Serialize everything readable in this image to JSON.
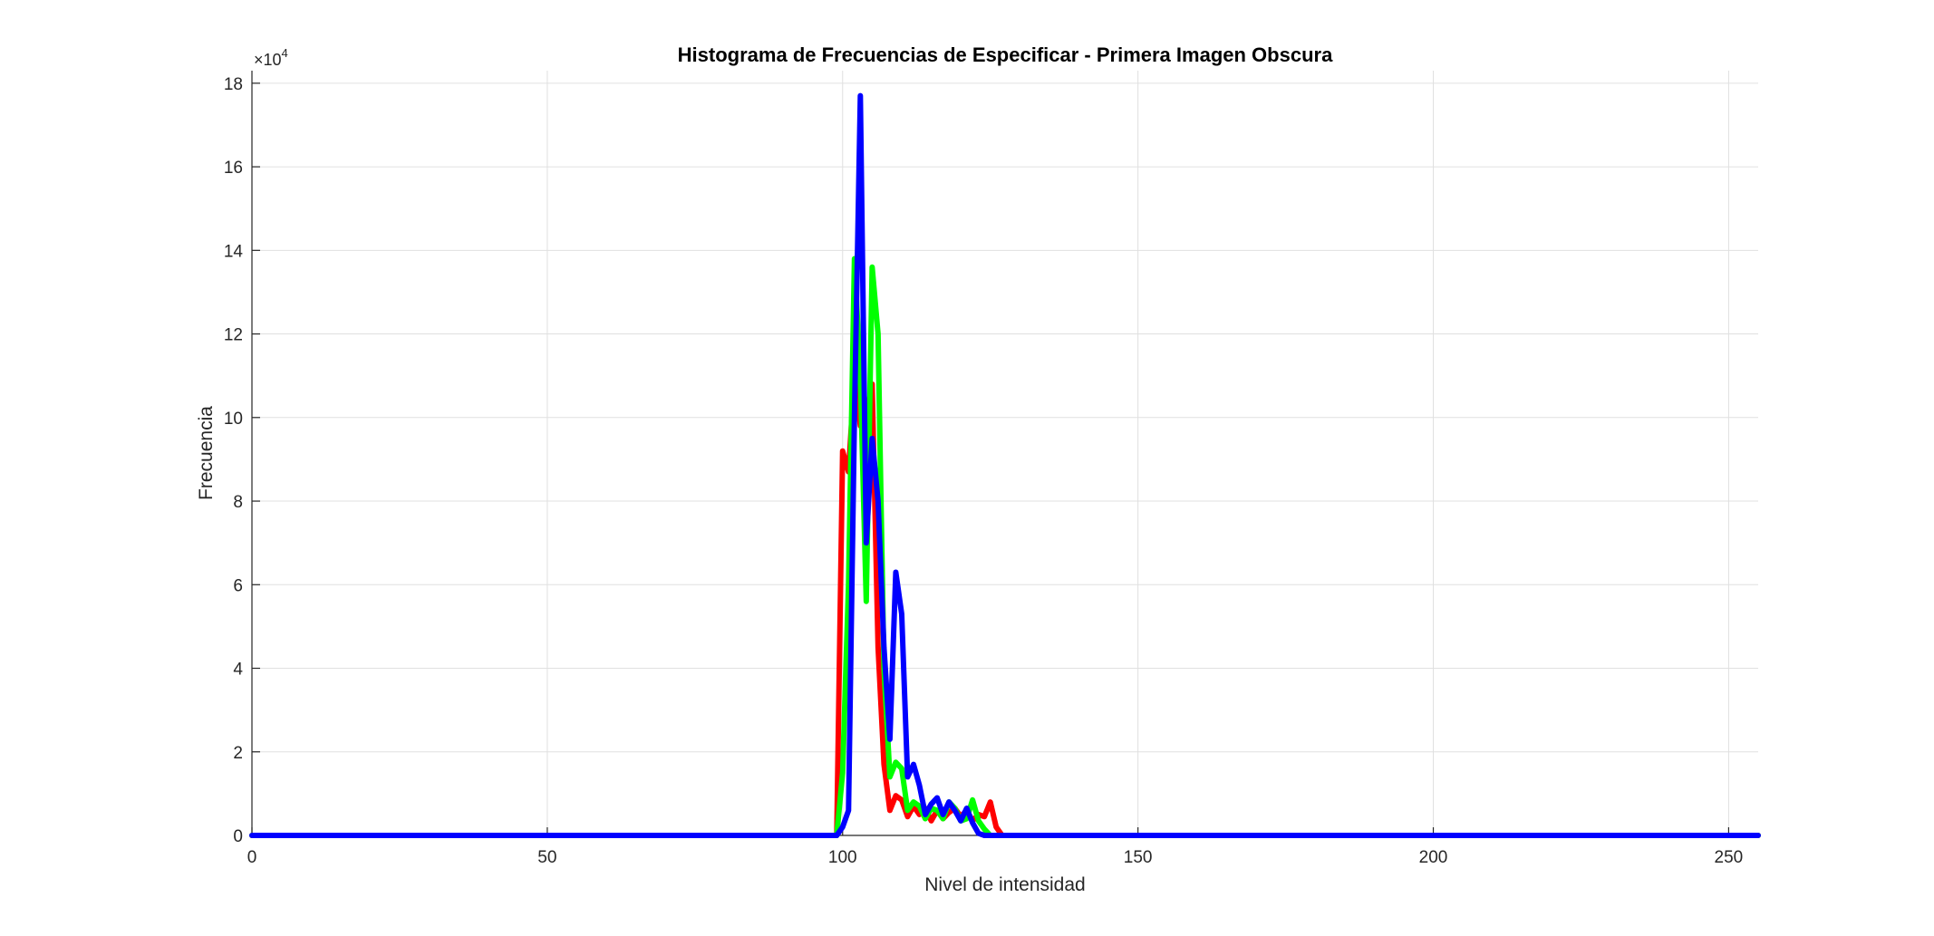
{
  "chart_data": {
    "type": "line",
    "title": "Histograma de Frecuencias de Especificar - Primera Imagen Obscura",
    "xlabel": "Nivel de intensidad",
    "ylabel": "Frecuencia",
    "xlim": [
      0,
      255
    ],
    "ylim": [
      0,
      183000
    ],
    "grid": true,
    "legend": "none",
    "x_ticks": [
      0,
      50,
      100,
      150,
      200,
      250
    ],
    "y_ticks": [
      0,
      20000,
      40000,
      60000,
      80000,
      100000,
      120000,
      140000,
      160000,
      180000
    ],
    "y_tick_labels": [
      "0",
      "2",
      "4",
      "6",
      "8",
      "10",
      "12",
      "14",
      "16",
      "18"
    ],
    "y_exponent_base": "×10",
    "y_exponent_power": "4",
    "series": [
      {
        "color": "#ff0000",
        "points": [
          [
            0,
            0
          ],
          [
            99,
            0
          ],
          [
            100,
            92000
          ],
          [
            101,
            87000
          ],
          [
            102,
            110000
          ],
          [
            103,
            98000
          ],
          [
            104,
            100000
          ],
          [
            105,
            108000
          ],
          [
            106,
            45000
          ],
          [
            107,
            17000
          ],
          [
            108,
            6000
          ],
          [
            109,
            9500
          ],
          [
            110,
            8500
          ],
          [
            111,
            4500
          ],
          [
            112,
            7000
          ],
          [
            113,
            5000
          ],
          [
            114,
            6500
          ],
          [
            115,
            3500
          ],
          [
            116,
            6000
          ],
          [
            117,
            4000
          ],
          [
            118,
            5500
          ],
          [
            119,
            6500
          ],
          [
            120,
            4500
          ],
          [
            121,
            6000
          ],
          [
            122,
            3500
          ],
          [
            123,
            5000
          ],
          [
            124,
            4500
          ],
          [
            125,
            8000
          ],
          [
            126,
            2000
          ],
          [
            127,
            0
          ],
          [
            255,
            0
          ]
        ]
      },
      {
        "color": "#00ff00",
        "points": [
          [
            0,
            0
          ],
          [
            99,
            0
          ],
          [
            100,
            15000
          ],
          [
            101,
            60000
          ],
          [
            102,
            138000
          ],
          [
            103,
            110000
          ],
          [
            104,
            56000
          ],
          [
            105,
            136000
          ],
          [
            106,
            120000
          ],
          [
            107,
            40000
          ],
          [
            108,
            14000
          ],
          [
            109,
            17500
          ],
          [
            110,
            16000
          ],
          [
            111,
            6000
          ],
          [
            112,
            8000
          ],
          [
            113,
            7000
          ],
          [
            114,
            4000
          ],
          [
            115,
            6500
          ],
          [
            116,
            6000
          ],
          [
            117,
            4000
          ],
          [
            118,
            8000
          ],
          [
            119,
            6500
          ],
          [
            120,
            3500
          ],
          [
            121,
            4000
          ],
          [
            122,
            8500
          ],
          [
            123,
            3500
          ],
          [
            124,
            1500
          ],
          [
            125,
            0
          ],
          [
            255,
            0
          ]
        ]
      },
      {
        "color": "#0000ff",
        "points": [
          [
            0,
            0
          ],
          [
            99,
            0
          ],
          [
            100,
            2000
          ],
          [
            101,
            6000
          ],
          [
            102,
            100000
          ],
          [
            103,
            177000
          ],
          [
            104,
            70000
          ],
          [
            105,
            95000
          ],
          [
            106,
            80000
          ],
          [
            107,
            45000
          ],
          [
            108,
            23000
          ],
          [
            109,
            63000
          ],
          [
            110,
            53000
          ],
          [
            111,
            14000
          ],
          [
            112,
            17000
          ],
          [
            113,
            12000
          ],
          [
            114,
            5000
          ],
          [
            115,
            7500
          ],
          [
            116,
            9000
          ],
          [
            117,
            5000
          ],
          [
            118,
            8000
          ],
          [
            119,
            6000
          ],
          [
            120,
            3500
          ],
          [
            121,
            6500
          ],
          [
            122,
            3000
          ],
          [
            123,
            500
          ],
          [
            124,
            0
          ],
          [
            255,
            0
          ]
        ]
      }
    ]
  }
}
